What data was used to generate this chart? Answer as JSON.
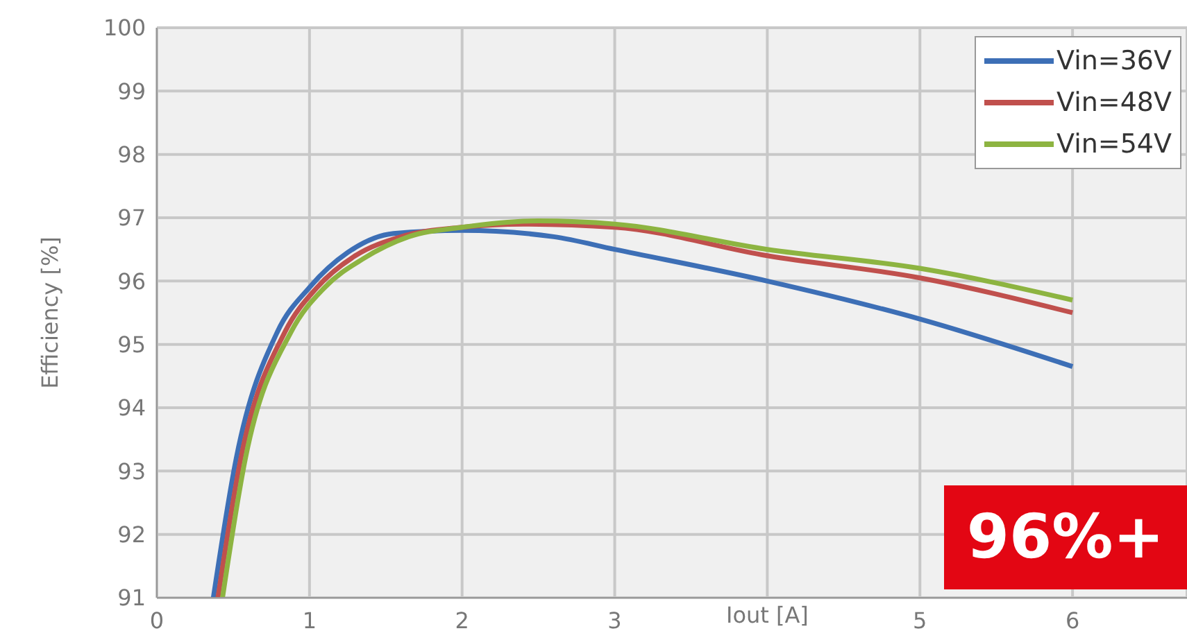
{
  "chart_data": {
    "type": "line",
    "ylabel": "Efficiency [%]",
    "xlabel": "Iout [A]",
    "xlim": [
      0,
      6.75
    ],
    "xticks": [
      0,
      1,
      2,
      3,
      {
        "value": 4,
        "label": null
      },
      5,
      6
    ],
    "ylim": [
      91,
      100
    ],
    "yticks": [
      91,
      92,
      93,
      94,
      95,
      96,
      97,
      98,
      99,
      100
    ],
    "grid": true,
    "legend": "top right",
    "marker": "none",
    "line_style": "solid",
    "annotations": [
      "96%+"
    ],
    "series": [
      {
        "name": "Vin=36V",
        "color": "#3d6fb6",
        "x": [
          0.37,
          0.52,
          0.79,
          1.0,
          1.25,
          1.55,
          2.0,
          2.6,
          3,
          4,
          5,
          6
        ],
        "values": [
          91,
          93.2,
          95.2,
          95.9,
          96.45,
          96.75,
          96.8,
          96.7,
          96.5,
          96.0,
          95.4,
          94.65
        ]
      },
      {
        "name": "Vin=48V",
        "color": "#c0504d",
        "x": [
          0.4,
          0.55,
          0.84,
          1.05,
          1.3,
          1.6,
          2.0,
          2.4,
          3,
          4,
          5,
          6
        ],
        "values": [
          91,
          93.2,
          95.2,
          95.9,
          96.4,
          96.7,
          96.85,
          96.9,
          96.85,
          96.4,
          96.05,
          95.5
        ]
      },
      {
        "name": "Vin=54V",
        "color": "#8db441",
        "x": [
          0.43,
          0.58,
          0.88,
          1.1,
          1.35,
          1.65,
          2.0,
          2.5,
          3,
          4,
          5,
          6
        ],
        "values": [
          91,
          93.2,
          95.2,
          95.9,
          96.35,
          96.7,
          96.85,
          96.95,
          96.9,
          96.5,
          96.2,
          95.7
        ]
      }
    ]
  }
}
